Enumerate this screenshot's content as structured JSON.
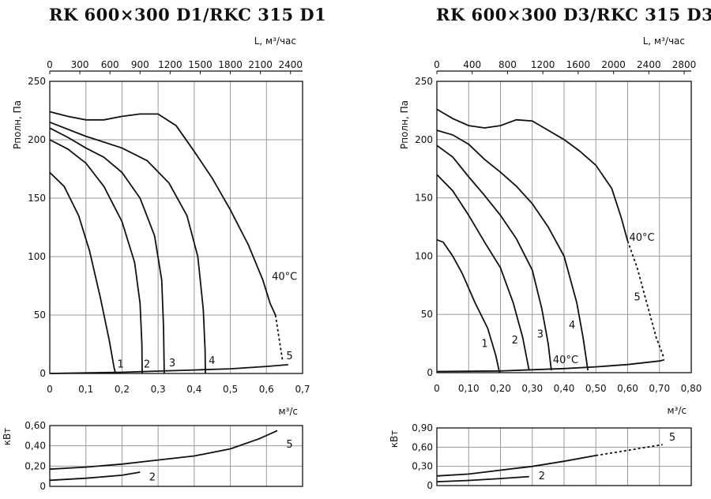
{
  "chart_data": [
    {
      "type": "line",
      "title": "RK 600×300 D1/RKC 315 D1",
      "pressure_panel": {
        "ylabel": "Pполн, Па",
        "xlabel_bottom": "м³/с",
        "xlabel_top": "L, м³/час",
        "xlim": [
          0,
          0.7
        ],
        "ylim": [
          0,
          250
        ],
        "x_ticks": [
          "0",
          "0,1",
          "0,2",
          "0,3",
          "0,4",
          "0,5",
          "0,6",
          "0,7"
        ],
        "x_tick_values": [
          0,
          0.1,
          0.2,
          0.3,
          0.4,
          0.5,
          0.6,
          0.7
        ],
        "y_ticks": [
          "0",
          "50",
          "100",
          "150",
          "200",
          "250"
        ],
        "y_tick_values": [
          0,
          50,
          100,
          150,
          200,
          250
        ],
        "top_ticks": [
          "0",
          "300",
          "600",
          "900",
          "1200",
          "1500",
          "1800",
          "2100",
          "2400"
        ],
        "top_tick_values": [
          0,
          300,
          600,
          900,
          1200,
          1500,
          1800,
          2100,
          2400
        ],
        "top_unit_factor": 3600,
        "grid": true,
        "series": [
          {
            "name": "1",
            "points": [
              [
                0,
                172
              ],
              [
                0.04,
                160
              ],
              [
                0.08,
                135
              ],
              [
                0.11,
                105
              ],
              [
                0.14,
                65
              ],
              [
                0.165,
                28
              ],
              [
                0.178,
                5
              ],
              [
                0.182,
                0
              ]
            ]
          },
          {
            "name": "2",
            "points": [
              [
                0,
                200
              ],
              [
                0.05,
                192
              ],
              [
                0.1,
                180
              ],
              [
                0.15,
                160
              ],
              [
                0.2,
                130
              ],
              [
                0.235,
                95
              ],
              [
                0.25,
                60
              ],
              [
                0.255,
                25
              ],
              [
                0.256,
                0
              ]
            ]
          },
          {
            "name": "3",
            "points": [
              [
                0,
                210
              ],
              [
                0.05,
                202
              ],
              [
                0.1,
                193
              ],
              [
                0.15,
                185
              ],
              [
                0.2,
                172
              ],
              [
                0.25,
                150
              ],
              [
                0.29,
                118
              ],
              [
                0.31,
                80
              ],
              [
                0.315,
                40
              ],
              [
                0.317,
                0
              ]
            ]
          },
          {
            "name": "4",
            "points": [
              [
                0,
                215
              ],
              [
                0.1,
                203
              ],
              [
                0.2,
                193
              ],
              [
                0.27,
                182
              ],
              [
                0.33,
                163
              ],
              [
                0.38,
                135
              ],
              [
                0.41,
                100
              ],
              [
                0.425,
                55
              ],
              [
                0.43,
                20
              ],
              [
                0.431,
                0
              ]
            ]
          },
          {
            "name": "5",
            "points": [
              [
                0,
                224
              ],
              [
                0.05,
                220
              ],
              [
                0.1,
                217
              ],
              [
                0.15,
                217
              ],
              [
                0.2,
                220
              ],
              [
                0.25,
                222
              ],
              [
                0.3,
                222
              ],
              [
                0.35,
                212
              ],
              [
                0.4,
                190
              ],
              [
                0.45,
                167
              ],
              [
                0.5,
                140
              ],
              [
                0.55,
                110
              ],
              [
                0.59,
                80
              ],
              [
                0.61,
                60
              ],
              [
                0.625,
                50
              ]
            ],
            "dashed_tail": [
              [
                0.625,
                50
              ],
              [
                0.635,
                30
              ],
              [
                0.645,
                10
              ]
            ]
          }
        ],
        "system_line": [
          [
            0,
            0
          ],
          [
            0.2,
            1
          ],
          [
            0.3,
            2
          ],
          [
            0.4,
            3
          ],
          [
            0.5,
            4
          ],
          [
            0.6,
            6
          ],
          [
            0.66,
            7.5
          ]
        ],
        "labels": [
          {
            "text": "1",
            "x": 0.187,
            "y": 5
          },
          {
            "text": "2",
            "x": 0.26,
            "y": 5
          },
          {
            "text": "3",
            "x": 0.33,
            "y": 6
          },
          {
            "text": "4",
            "x": 0.44,
            "y": 8
          },
          {
            "text": "5",
            "x": 0.655,
            "y": 12
          },
          {
            "text": "40°C",
            "x": 0.615,
            "y": 80
          }
        ]
      },
      "power_panel": {
        "ylabel": "кВт",
        "ylim": [
          0,
          0.6
        ],
        "y_ticks": [
          "0",
          "0,20",
          "0,40",
          "0,60"
        ],
        "y_tick_values": [
          0,
          0.2,
          0.4,
          0.6
        ],
        "series": [
          {
            "name": "5",
            "points": [
              [
                0,
                0.17
              ],
              [
                0.1,
                0.19
              ],
              [
                0.2,
                0.22
              ],
              [
                0.3,
                0.26
              ],
              [
                0.4,
                0.3
              ],
              [
                0.5,
                0.37
              ],
              [
                0.58,
                0.47
              ],
              [
                0.63,
                0.55
              ]
            ]
          },
          {
            "name": "2",
            "points": [
              [
                0,
                0.06
              ],
              [
                0.1,
                0.08
              ],
              [
                0.2,
                0.11
              ],
              [
                0.25,
                0.14
              ]
            ]
          }
        ],
        "labels": [
          {
            "text": "5",
            "x": 0.655,
            "y": 0.38
          },
          {
            "text": "2",
            "x": 0.275,
            "y": 0.06
          }
        ]
      }
    },
    {
      "type": "line",
      "title": "RK 600×300 D3/RKC 315 D3",
      "pressure_panel": {
        "ylabel": "Pполн, Па",
        "xlabel_bottom": "м³/с",
        "xlabel_top": "L, м³/час",
        "xlim": [
          0,
          0.8
        ],
        "ylim": [
          0,
          250
        ],
        "x_ticks": [
          "0",
          "0,10",
          "0,20",
          "0,30",
          "0,40",
          "0,50",
          "0,60",
          "0,70",
          "0,80"
        ],
        "x_tick_values": [
          0,
          0.1,
          0.2,
          0.3,
          0.4,
          0.5,
          0.6,
          0.7,
          0.8
        ],
        "y_ticks": [
          "0",
          "50",
          "100",
          "150",
          "200",
          "250"
        ],
        "y_tick_values": [
          0,
          50,
          100,
          150,
          200,
          250
        ],
        "top_ticks": [
          "0",
          "400",
          "800",
          "1200",
          "1600",
          "2000",
          "2400",
          "2800"
        ],
        "top_tick_values": [
          0,
          400,
          800,
          1200,
          1600,
          2000,
          2400,
          2800
        ],
        "top_unit_factor": 3600,
        "grid": true,
        "series": [
          {
            "name": "1",
            "points": [
              [
                0,
                114
              ],
              [
                0.02,
                112
              ],
              [
                0.05,
                100
              ],
              [
                0.08,
                85
              ],
              [
                0.12,
                60
              ],
              [
                0.16,
                38
              ],
              [
                0.185,
                15
              ],
              [
                0.197,
                0
              ]
            ]
          },
          {
            "name": "2",
            "points": [
              [
                0,
                170
              ],
              [
                0.05,
                156
              ],
              [
                0.1,
                135
              ],
              [
                0.15,
                112
              ],
              [
                0.2,
                90
              ],
              [
                0.24,
                60
              ],
              [
                0.27,
                30
              ],
              [
                0.29,
                2
              ]
            ]
          },
          {
            "name": "3",
            "points": [
              [
                0,
                195
              ],
              [
                0.05,
                185
              ],
              [
                0.1,
                168
              ],
              [
                0.15,
                152
              ],
              [
                0.2,
                135
              ],
              [
                0.25,
                115
              ],
              [
                0.3,
                88
              ],
              [
                0.33,
                55
              ],
              [
                0.35,
                25
              ],
              [
                0.36,
                2
              ]
            ]
          },
          {
            "name": "4",
            "points": [
              [
                0,
                208
              ],
              [
                0.05,
                204
              ],
              [
                0.1,
                196
              ],
              [
                0.15,
                183
              ],
              [
                0.2,
                172
              ],
              [
                0.25,
                160
              ],
              [
                0.3,
                145
              ],
              [
                0.35,
                125
              ],
              [
                0.4,
                100
              ],
              [
                0.44,
                60
              ],
              [
                0.46,
                30
              ],
              [
                0.475,
                2
              ]
            ]
          },
          {
            "name": "5",
            "points": [
              [
                0,
                226
              ],
              [
                0.05,
                218
              ],
              [
                0.1,
                212
              ],
              [
                0.15,
                210
              ],
              [
                0.2,
                212
              ],
              [
                0.25,
                217
              ],
              [
                0.3,
                216
              ],
              [
                0.35,
                208
              ],
              [
                0.4,
                200
              ],
              [
                0.45,
                190
              ],
              [
                0.5,
                178
              ],
              [
                0.55,
                158
              ],
              [
                0.58,
                133
              ],
              [
                0.6,
                113
              ]
            ],
            "dashed_tail": [
              [
                0.6,
                113
              ],
              [
                0.63,
                90
              ],
              [
                0.66,
                60
              ],
              [
                0.69,
                30
              ],
              [
                0.715,
                12
              ]
            ]
          }
        ],
        "system_line": [
          [
            0,
            1
          ],
          [
            0.2,
            1.5
          ],
          [
            0.3,
            2.5
          ],
          [
            0.4,
            3.5
          ],
          [
            0.5,
            5
          ],
          [
            0.6,
            7
          ],
          [
            0.7,
            10
          ],
          [
            0.715,
            11
          ]
        ],
        "labels": [
          {
            "text": "1",
            "x": 0.14,
            "y": 22
          },
          {
            "text": "2",
            "x": 0.235,
            "y": 25
          },
          {
            "text": "3",
            "x": 0.315,
            "y": 30
          },
          {
            "text": "4",
            "x": 0.415,
            "y": 38
          },
          {
            "text": "5",
            "x": 0.62,
            "y": 62
          },
          {
            "text": "40°C",
            "x": 0.605,
            "y": 113
          },
          {
            "text": "40°C",
            "x": 0.365,
            "y": 8
          }
        ]
      },
      "power_panel": {
        "ylabel": "кВт",
        "ylim": [
          0,
          0.9
        ],
        "y_ticks": [
          "0",
          "0,30",
          "0,60",
          "0,90"
        ],
        "y_tick_values": [
          0,
          0.3,
          0.6,
          0.9
        ],
        "series": [
          {
            "name": "5",
            "points": [
              [
                0,
                0.15
              ],
              [
                0.1,
                0.18
              ],
              [
                0.2,
                0.24
              ],
              [
                0.3,
                0.3
              ],
              [
                0.4,
                0.38
              ],
              [
                0.5,
                0.47
              ]
            ],
            "dashed_tail": [
              [
                0.5,
                0.47
              ],
              [
                0.6,
                0.55
              ],
              [
                0.71,
                0.64
              ]
            ]
          },
          {
            "name": "2",
            "points": [
              [
                0,
                0.06
              ],
              [
                0.1,
                0.08
              ],
              [
                0.2,
                0.11
              ],
              [
                0.29,
                0.14
              ]
            ]
          }
        ],
        "labels": [
          {
            "text": "5",
            "x": 0.73,
            "y": 0.7
          },
          {
            "text": "2",
            "x": 0.32,
            "y": 0.1
          }
        ]
      }
    }
  ]
}
